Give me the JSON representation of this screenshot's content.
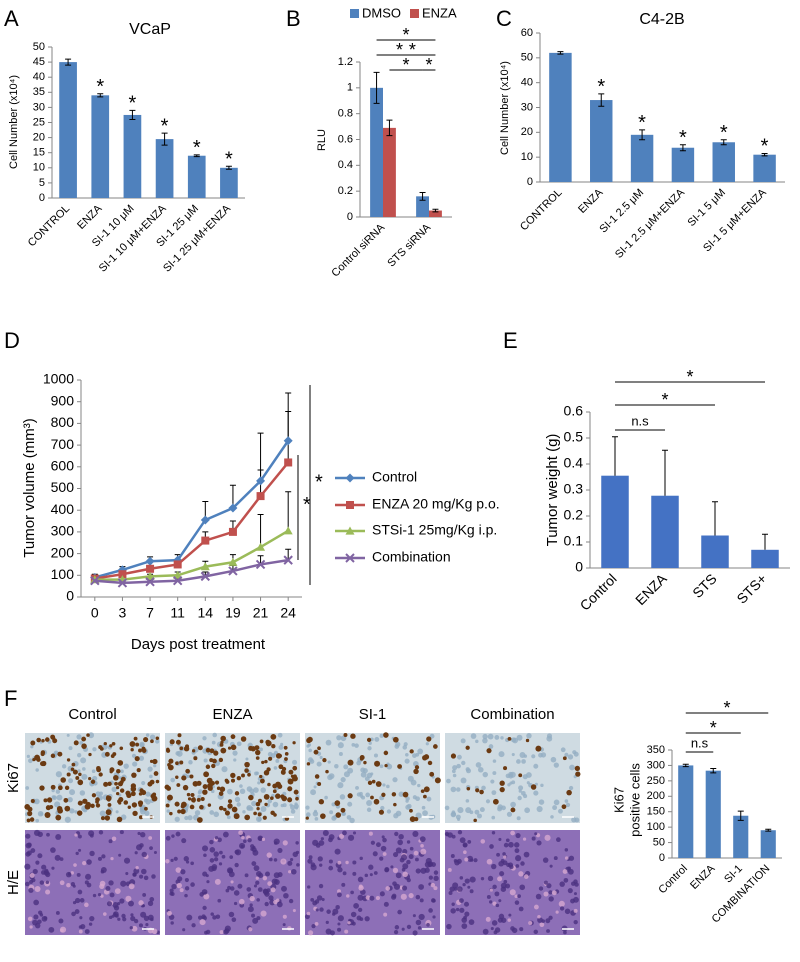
{
  "chart_data": [
    {
      "panel": "A",
      "type": "bar",
      "title": "VCaP",
      "y_label": "Cell Number (x10⁴)",
      "categories": [
        "CONTROL",
        "ENZA",
        "SI-1 10 μM",
        "SI-1 10 μM+ENZA",
        "SI-1 25 μM",
        "SI-1 25 μM+ENZA"
      ],
      "values": [
        45,
        34,
        27.5,
        19.5,
        14,
        10
      ],
      "errors": [
        1,
        0.5,
        1.5,
        2,
        0.3,
        0.5
      ],
      "error_bars": "both",
      "color": "#4f81bd",
      "ylim": [
        0,
        50
      ],
      "yticks": [
        0,
        5,
        10,
        15,
        20,
        25,
        30,
        35,
        40,
        45,
        50
      ],
      "significance": [
        null,
        "*",
        "*",
        "*",
        "*",
        "*"
      ]
    },
    {
      "panel": "B",
      "type": "grouped_bar",
      "y_label": "RLU",
      "categories": [
        "Control siRNA",
        "STS siRNA"
      ],
      "series": [
        {
          "name": "DMSO",
          "color": "#4f81bd",
          "values": [
            1,
            0.16
          ],
          "errors": [
            0.12,
            0.03
          ]
        },
        {
          "name": "ENZA",
          "color": "#c0504d",
          "values": [
            0.69,
            0.05
          ],
          "errors": [
            0.06,
            0.01
          ]
        }
      ],
      "error_bars": "both",
      "ylim": [
        0,
        1.2
      ],
      "yticks": [
        0,
        0.2,
        0.4,
        0.6,
        0.8,
        1,
        1.2
      ],
      "legend": "top",
      "brackets": [
        "*",
        "*",
        "*",
        "*",
        "*"
      ]
    },
    {
      "panel": "C",
      "type": "bar",
      "title": "C4-2B",
      "y_label": "Cell Number (x10⁴)",
      "categories": [
        "CONTROL",
        "ENZA",
        "SI-1 2.5 μM",
        "SI-1 2.5 μM+ENZA",
        "SI-1 5 μM",
        "SI-1 5 μM+ENZA"
      ],
      "values": [
        52,
        33,
        19,
        13.8,
        16,
        11
      ],
      "errors": [
        0.5,
        2.5,
        2,
        1.2,
        1,
        0.5
      ],
      "error_bars": "both",
      "color": "#4f81bd",
      "ylim": [
        0,
        60
      ],
      "yticks": [
        0,
        10,
        20,
        30,
        40,
        50,
        60
      ],
      "significance": [
        null,
        "*",
        "*",
        "*",
        "*",
        "*"
      ]
    },
    {
      "panel": "D",
      "type": "line",
      "x_label": "Days post treatment",
      "y_label": "Tumor volume (mm³)",
      "categories": [
        "0",
        "3",
        "7",
        "11",
        "14",
        "19",
        "21",
        "24"
      ],
      "series": [
        {
          "name": "Control",
          "color": "#4f81bd",
          "marker": "diamond",
          "values": [
            90,
            125,
            165,
            170,
            355,
            410,
            535,
            720
          ],
          "errors": [
            15,
            15,
            20,
            25,
            85,
            105,
            220,
            220
          ]
        },
        {
          "name": "ENZA 20 mg/Kg p.o.",
          "color": "#c0504d",
          "marker": "square",
          "values": [
            85,
            105,
            130,
            150,
            260,
            300,
            465,
            620
          ],
          "errors": [
            10,
            15,
            15,
            20,
            40,
            50,
            120,
            235
          ]
        },
        {
          "name": "STSi-1 25mg/Kg i.p.",
          "color": "#9bbb59",
          "marker": "triangle",
          "values": [
            80,
            80,
            95,
            100,
            140,
            160,
            230,
            305
          ],
          "errors": [
            10,
            10,
            10,
            15,
            25,
            35,
            150,
            180
          ]
        },
        {
          "name": "Combination",
          "color": "#8064a2",
          "marker": "x",
          "values": [
            75,
            65,
            70,
            75,
            95,
            120,
            150,
            170
          ],
          "errors": [
            10,
            10,
            10,
            10,
            20,
            25,
            40,
            50
          ]
        }
      ],
      "error_bars": "plus",
      "ylim": [
        0,
        1000
      ],
      "yticks": [
        0,
        100,
        200,
        300,
        400,
        500,
        600,
        700,
        800,
        900,
        1000
      ],
      "legend": "right",
      "brackets": [
        "*",
        "*"
      ]
    },
    {
      "panel": "E",
      "type": "bar",
      "y_label": "Tumor weight (g)",
      "categories": [
        "Control",
        "ENZA",
        "STS",
        "STS+"
      ],
      "values": [
        0.355,
        0.278,
        0.125,
        0.07
      ],
      "errors": [
        0.15,
        0.175,
        0.13,
        0.06
      ],
      "error_bars": "plus",
      "color": "#4472c4",
      "ylim": [
        0,
        0.6
      ],
      "yticks": [
        0,
        0.1,
        0.2,
        0.3,
        0.4,
        0.5,
        0.6
      ],
      "brackets": [
        "n.s",
        "*",
        "*"
      ]
    },
    {
      "type": "bar",
      "y_label": [
        "Ki67",
        "positive cells"
      ],
      "categories": [
        "Control",
        "ENZA",
        "SI-1",
        "COMBINATION"
      ],
      "values": [
        300,
        283,
        137,
        90
      ],
      "errors": [
        4,
        7,
        15,
        3
      ],
      "error_bars": "both",
      "color": "#4f81bd",
      "ylim": [
        0,
        350
      ],
      "yticks": [
        0,
        50,
        100,
        150,
        200,
        250,
        300,
        350
      ],
      "brackets": [
        "n.s",
        "*",
        "*"
      ]
    }
  ],
  "micrographs": {
    "panel": "F",
    "columns": [
      "Control",
      "ENZA",
      "SI-1",
      "Combination"
    ],
    "rows": [
      "Ki67",
      "H/E"
    ]
  }
}
